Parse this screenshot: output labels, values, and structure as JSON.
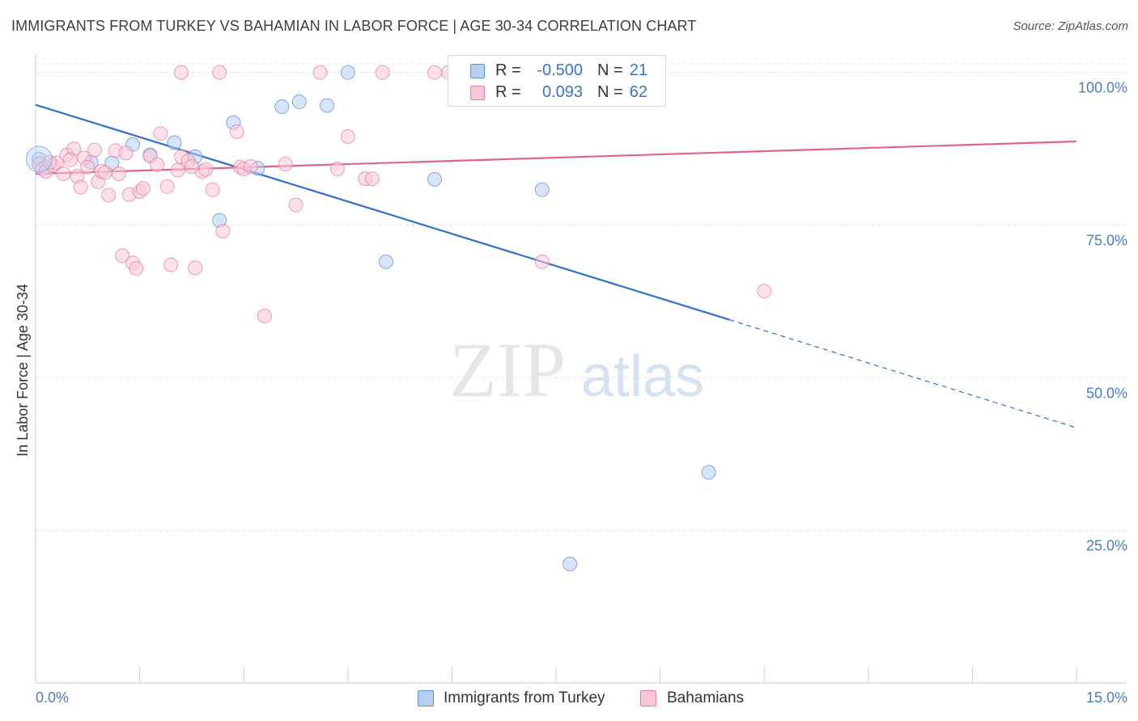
{
  "header": {
    "title": "IMMIGRANTS FROM TURKEY VS BAHAMIAN IN LABOR FORCE | AGE 30-34 CORRELATION CHART",
    "source": "Source: ZipAtlas.com"
  },
  "watermark": {
    "zip": "ZIP",
    "atlas": "atlas"
  },
  "legend": {
    "rows": [
      {
        "r_label": "R =",
        "r_value": "-0.500",
        "n_label": "N =",
        "n_value": "21",
        "color": "#a9c8f0"
      },
      {
        "r_label": "R =",
        "r_value": "0.093",
        "n_label": "N =",
        "n_value": "62",
        "color": "#f7b8cc"
      }
    ]
  },
  "bottom_legend": {
    "items": [
      {
        "label": "Immigrants from Turkey",
        "color": "#a9c8f0"
      },
      {
        "label": "Bahamians",
        "color": "#f7b8cc"
      }
    ]
  },
  "chart_data": {
    "type": "scatter",
    "title": "IMMIGRANTS FROM TURKEY VS BAHAMIAN IN LABOR FORCE | AGE 30-34 CORRELATION CHART",
    "xlabel": "",
    "ylabel": "In Labor Force | Age 30-34",
    "xlim": [
      0,
      15
    ],
    "ylim": [
      0,
      103
    ],
    "x_tick_labels": [
      "0.0%",
      "15.0%"
    ],
    "y_ticks": [
      25,
      50,
      75,
      100
    ],
    "y_tick_labels": [
      "25.0%",
      "50.0%",
      "75.0%",
      "100.0%"
    ],
    "grid": true,
    "legend_position": "top-center",
    "series": [
      {
        "name": "Immigrants from Turkey",
        "color": "#5b8fd6",
        "fill": "#b7d0f2",
        "points": [
          [
            0.05,
            85.8
          ],
          [
            0.8,
            85.3
          ],
          [
            1.1,
            85.2
          ],
          [
            1.4,
            88.2
          ],
          [
            1.65,
            86.5
          ],
          [
            2.0,
            88.5
          ],
          [
            2.3,
            86.2
          ],
          [
            2.65,
            75.8
          ],
          [
            2.85,
            91.8
          ],
          [
            3.2,
            84.3
          ],
          [
            3.55,
            94.4
          ],
          [
            3.8,
            95.2
          ],
          [
            4.2,
            94.6
          ],
          [
            4.5,
            100.0
          ],
          [
            5.05,
            69.0
          ],
          [
            5.75,
            82.5
          ],
          [
            7.3,
            80.8
          ],
          [
            7.7,
            19.5
          ],
          [
            8.4,
            100.0
          ],
          [
            9.7,
            34.5
          ],
          [
            0.15,
            84.5
          ]
        ],
        "trend": {
          "x0": 0.0,
          "y0": 94.7,
          "x1": 10.0,
          "y1": 59.5,
          "dash_to_x": 15.0,
          "dash_to_y": 41.8
        }
      },
      {
        "name": "Bahamians",
        "color": "#e57ba0",
        "fill": "#f9c8d8",
        "points": [
          [
            0.05,
            85.0
          ],
          [
            0.1,
            84.2
          ],
          [
            0.15,
            83.8
          ],
          [
            0.25,
            84.8
          ],
          [
            0.3,
            85.2
          ],
          [
            0.4,
            83.4
          ],
          [
            0.45,
            86.5
          ],
          [
            0.55,
            87.5
          ],
          [
            0.6,
            83.0
          ],
          [
            0.65,
            81.2
          ],
          [
            0.7,
            86.0
          ],
          [
            0.75,
            84.5
          ],
          [
            0.85,
            87.3
          ],
          [
            0.9,
            82.1
          ],
          [
            0.95,
            83.8
          ],
          [
            1.05,
            79.9
          ],
          [
            1.15,
            87.2
          ],
          [
            1.2,
            83.4
          ],
          [
            1.25,
            70.0
          ],
          [
            1.3,
            86.8
          ],
          [
            1.35,
            80.0
          ],
          [
            1.4,
            68.8
          ],
          [
            1.45,
            67.9
          ],
          [
            1.5,
            80.5
          ],
          [
            1.55,
            81.0
          ],
          [
            1.65,
            86.3
          ],
          [
            1.75,
            84.9
          ],
          [
            1.8,
            90.0
          ],
          [
            1.9,
            81.3
          ],
          [
            1.95,
            68.5
          ],
          [
            2.05,
            84.0
          ],
          [
            2.1,
            86.2
          ],
          [
            2.2,
            85.5
          ],
          [
            2.3,
            68.0
          ],
          [
            2.4,
            83.8
          ],
          [
            2.45,
            84.1
          ],
          [
            2.55,
            80.8
          ],
          [
            2.7,
            74.0
          ],
          [
            2.9,
            90.3
          ],
          [
            2.95,
            84.5
          ],
          [
            3.0,
            84.2
          ],
          [
            3.3,
            60.1
          ],
          [
            3.6,
            85.0
          ],
          [
            3.75,
            78.3
          ],
          [
            4.1,
            100.0
          ],
          [
            4.35,
            84.2
          ],
          [
            4.5,
            89.5
          ],
          [
            4.75,
            82.6
          ],
          [
            4.85,
            82.6
          ],
          [
            5.0,
            100.0
          ],
          [
            5.75,
            100.0
          ],
          [
            5.95,
            100.0
          ],
          [
            7.2,
            100.0
          ],
          [
            7.3,
            69.0
          ],
          [
            10.5,
            64.2
          ],
          [
            2.1,
            100.0
          ],
          [
            2.65,
            100.0
          ],
          [
            0.2,
            85.3
          ],
          [
            0.5,
            85.7
          ],
          [
            1.0,
            83.6
          ],
          [
            2.25,
            84.6
          ],
          [
            3.1,
            84.6
          ]
        ],
        "trend": {
          "x0": 0.0,
          "y0": 83.4,
          "x1": 15.0,
          "y1": 88.7
        }
      }
    ]
  }
}
